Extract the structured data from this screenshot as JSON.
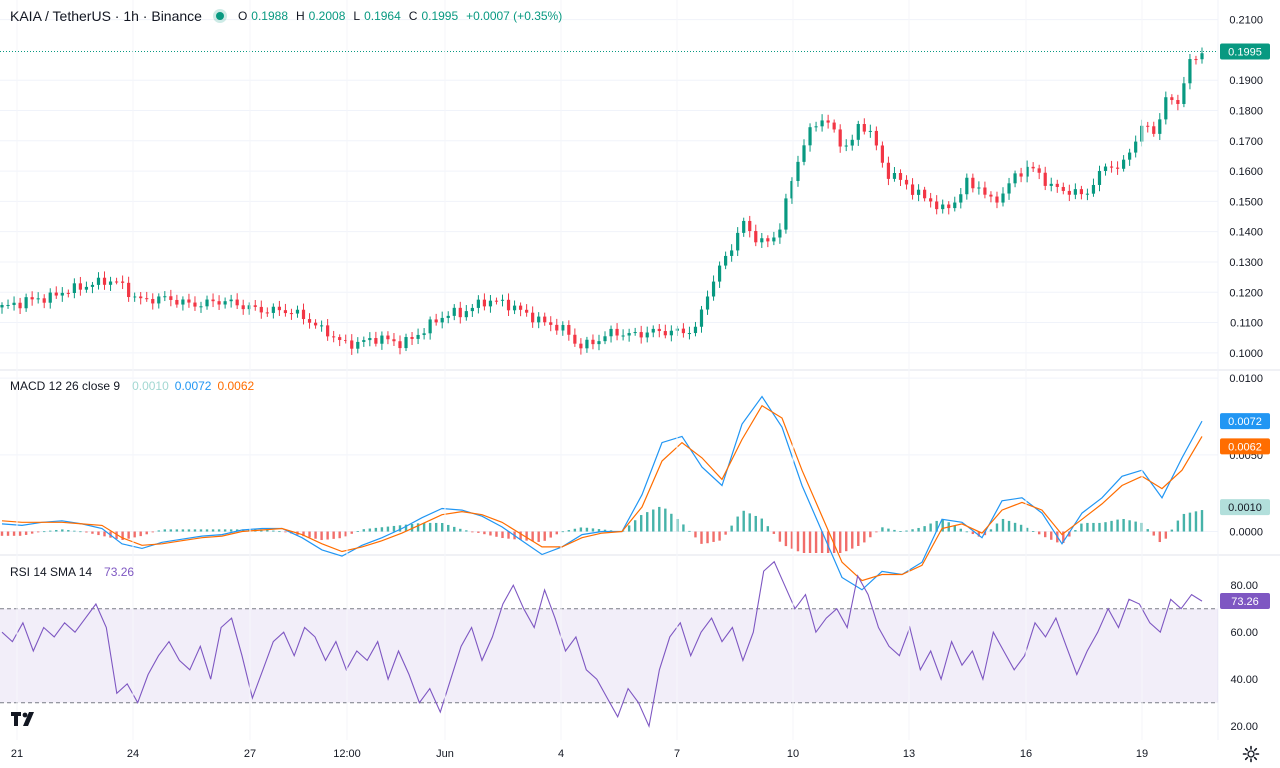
{
  "header": {
    "symbol": "KAIA / TetherUS · 1h · Binance",
    "open_label": "O",
    "open": "0.1988",
    "high_label": "H",
    "high": "0.2008",
    "low_label": "L",
    "low": "0.1964",
    "close_label": "C",
    "close": "0.1995",
    "change": "+0.0007 (+0.35%)",
    "status_icon": "market-open-dot-icon"
  },
  "macd_legend": {
    "title": "MACD 12 26 close 9",
    "hist": "0.0010",
    "macd": "0.0072",
    "signal": "0.0062"
  },
  "rsi_legend": {
    "title": "RSI 14 SMA 14",
    "value": "73.26"
  },
  "colors": {
    "up": "#089981",
    "down": "#f23645",
    "macd": "#2962ff",
    "signal": "#ff6d00",
    "rsi": "#7e57c2",
    "hist_up": "#26a69a",
    "hist_down": "#ef5350"
  },
  "icons": {
    "logo": "tradingview-logo-icon",
    "settings": "gear-icon"
  },
  "chart_data": [
    {
      "type": "candlestick",
      "title": "KAIA / TetherUS · 1h · Binance",
      "ylim": [
        0.095,
        0.2145
      ],
      "y_ticks": [
        "0.1000",
        "0.1100",
        "0.1200",
        "0.1300",
        "0.1400",
        "0.1500",
        "0.1600",
        "0.1700",
        "0.1800",
        "0.1900",
        "0.2100"
      ],
      "x_ticks": [
        "21",
        "24",
        "27",
        "12:00",
        "Jun",
        "4",
        "7",
        "10",
        "13",
        "16",
        "19"
      ],
      "last_price": "0.1995",
      "close_series": [
        0.115,
        0.116,
        0.117,
        0.118,
        0.118,
        0.12,
        0.121,
        0.122,
        0.123,
        0.124,
        0.123,
        0.119,
        0.117,
        0.118,
        0.118,
        0.117,
        0.116,
        0.116,
        0.117,
        0.117,
        0.116,
        0.115,
        0.114,
        0.114,
        0.114,
        0.113,
        0.111,
        0.108,
        0.106,
        0.103,
        0.103,
        0.104,
        0.105,
        0.104,
        0.103,
        0.105,
        0.108,
        0.111,
        0.113,
        0.113,
        0.115,
        0.117,
        0.117,
        0.116,
        0.114,
        0.112,
        0.11,
        0.109,
        0.107,
        0.102,
        0.103,
        0.105,
        0.107,
        0.106,
        0.106,
        0.107,
        0.107,
        0.107,
        0.107,
        0.108,
        0.12,
        0.128,
        0.135,
        0.143,
        0.138,
        0.136,
        0.14,
        0.155,
        0.168,
        0.175,
        0.178,
        0.17,
        0.168,
        0.176,
        0.172,
        0.16,
        0.158,
        0.155,
        0.152,
        0.15,
        0.147,
        0.15,
        0.156,
        0.155,
        0.15,
        0.152,
        0.158,
        0.161,
        0.16,
        0.155,
        0.154,
        0.153,
        0.152,
        0.157,
        0.163,
        0.16,
        0.168,
        0.175,
        0.173,
        0.184,
        0.183,
        0.196,
        0.1995
      ]
    },
    {
      "type": "line",
      "title": "MACD 12 26 close 9",
      "ylim": [
        -0.0014,
        0.0104
      ],
      "y_ticks": [
        "0.0000",
        "0.0050",
        "0.0100"
      ],
      "series": [
        {
          "name": "MACD",
          "last": 0.0072,
          "values": [
            0.0005,
            0.0004,
            0.0006,
            0.0007,
            0.0005,
            0.0002,
            -0.0008,
            -0.0011,
            -0.0007,
            -0.0005,
            -0.0003,
            -0.0002,
            0.0001,
            0.0002,
            0.0002,
            -0.0004,
            -0.0012,
            -0.0016,
            -0.0009,
            -0.0004,
            0.0002,
            0.0009,
            0.0015,
            0.0014,
            0.001,
            0.0003,
            -0.0006,
            -0.0015,
            -0.001,
            -0.0002,
            0.0,
            0.0,
            0.0024,
            0.0058,
            0.0062,
            0.0042,
            0.003,
            0.007,
            0.0088,
            0.0068,
            0.003,
            0.0,
            -0.003,
            -0.0038,
            -0.0026,
            -0.0028,
            -0.002,
            0.0008,
            0.0006,
            -0.0004,
            0.002,
            0.0022,
            0.0012,
            -0.0008,
            0.0012,
            0.0022,
            0.0036,
            0.004,
            0.0022,
            0.0048,
            0.0072
          ]
        },
        {
          "name": "Signal",
          "last": 0.0062,
          "values": [
            0.0007,
            0.0006,
            0.0006,
            0.0006,
            0.0005,
            0.0004,
            -0.0004,
            -0.0009,
            -0.0008,
            -0.0006,
            -0.0004,
            -0.0003,
            0.0,
            0.0001,
            0.0002,
            -0.0002,
            -0.0008,
            -0.0013,
            -0.001,
            -0.0006,
            -0.0001,
            0.0005,
            0.0011,
            0.0013,
            0.0011,
            0.0006,
            -0.0002,
            -0.001,
            -0.001,
            -0.0004,
            -0.0001,
            0.0,
            0.0016,
            0.0046,
            0.0058,
            0.0048,
            0.0034,
            0.006,
            0.0082,
            0.0074,
            0.004,
            0.001,
            -0.002,
            -0.0032,
            -0.0028,
            -0.0028,
            -0.0022,
            0.0002,
            0.0005,
            -0.0001,
            0.0014,
            0.0019,
            0.0014,
            -0.0002,
            0.0008,
            0.0018,
            0.003,
            0.0036,
            0.0028,
            0.004,
            0.0062
          ]
        },
        {
          "name": "Histogram",
          "last": 0.001
        }
      ]
    },
    {
      "type": "line",
      "title": "RSI 14 SMA 14",
      "ylim": [
        15,
        92
      ],
      "y_ticks": [
        "20.00",
        "40.00",
        "60.00",
        "80.00"
      ],
      "bands": [
        30,
        70
      ],
      "series": [
        {
          "name": "RSI",
          "last": 73.26,
          "values": [
            60,
            56,
            64,
            52,
            62,
            58,
            64,
            60,
            66,
            72,
            62,
            34,
            38,
            30,
            42,
            50,
            56,
            48,
            44,
            54,
            40,
            62,
            66,
            50,
            32,
            44,
            56,
            60,
            50,
            62,
            58,
            48,
            56,
            44,
            52,
            48,
            56,
            40,
            52,
            42,
            30,
            36,
            26,
            40,
            54,
            62,
            48,
            58,
            72,
            80,
            70,
            62,
            78,
            66,
            52,
            58,
            44,
            40,
            32,
            24,
            36,
            30,
            20,
            44,
            58,
            64,
            50,
            60,
            66,
            56,
            62,
            48,
            60,
            86,
            90,
            80,
            70,
            76,
            60,
            66,
            70,
            62,
            84,
            76,
            62,
            54,
            50,
            62,
            44,
            52,
            40,
            56,
            46,
            52,
            40,
            60,
            52,
            44,
            50,
            64,
            58,
            66,
            54,
            42,
            52,
            60,
            70,
            62,
            74,
            72,
            64,
            60,
            74,
            70,
            76,
            73.26
          ]
        }
      ]
    }
  ]
}
